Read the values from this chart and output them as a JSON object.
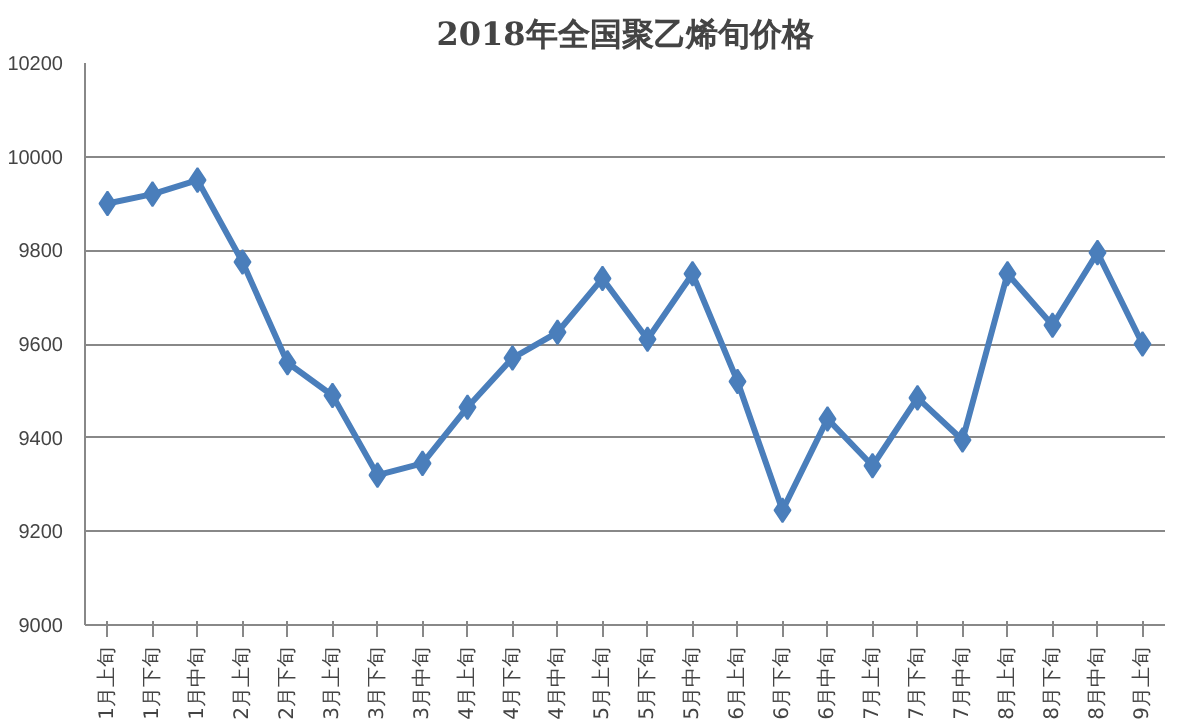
{
  "chart_data": {
    "type": "line",
    "title": "2018年全国聚乙烯旬价格",
    "categories": [
      "1月上旬",
      "1月下旬",
      "1月中旬",
      "2月上旬",
      "2月下旬",
      "3月上旬",
      "3月下旬",
      "3月中旬",
      "4月上旬",
      "4月下旬",
      "4月中旬",
      "5月上旬",
      "5月下旬",
      "5月中旬",
      "6月上旬",
      "6月下旬",
      "6月中旬",
      "7月上旬",
      "7月下旬",
      "7月中旬",
      "8月上旬",
      "8月下旬",
      "8月中旬",
      "9月上旬"
    ],
    "series": [
      {
        "color": "#4a7ebb",
        "values": [
          9900,
          9920,
          9950,
          9775,
          9560,
          9490,
          9320,
          9345,
          9465,
          9570,
          9625,
          9740,
          9610,
          9750,
          9520,
          9245,
          9440,
          9340,
          9485,
          9395,
          9750,
          9640,
          9795,
          9600
        ]
      }
    ],
    "ylim": [
      9000,
      10200
    ],
    "yticks": [
      9000,
      9200,
      9400,
      9600,
      9800,
      10000,
      10200
    ],
    "grid": "y",
    "marker": "diamond",
    "line_style": "solid"
  }
}
